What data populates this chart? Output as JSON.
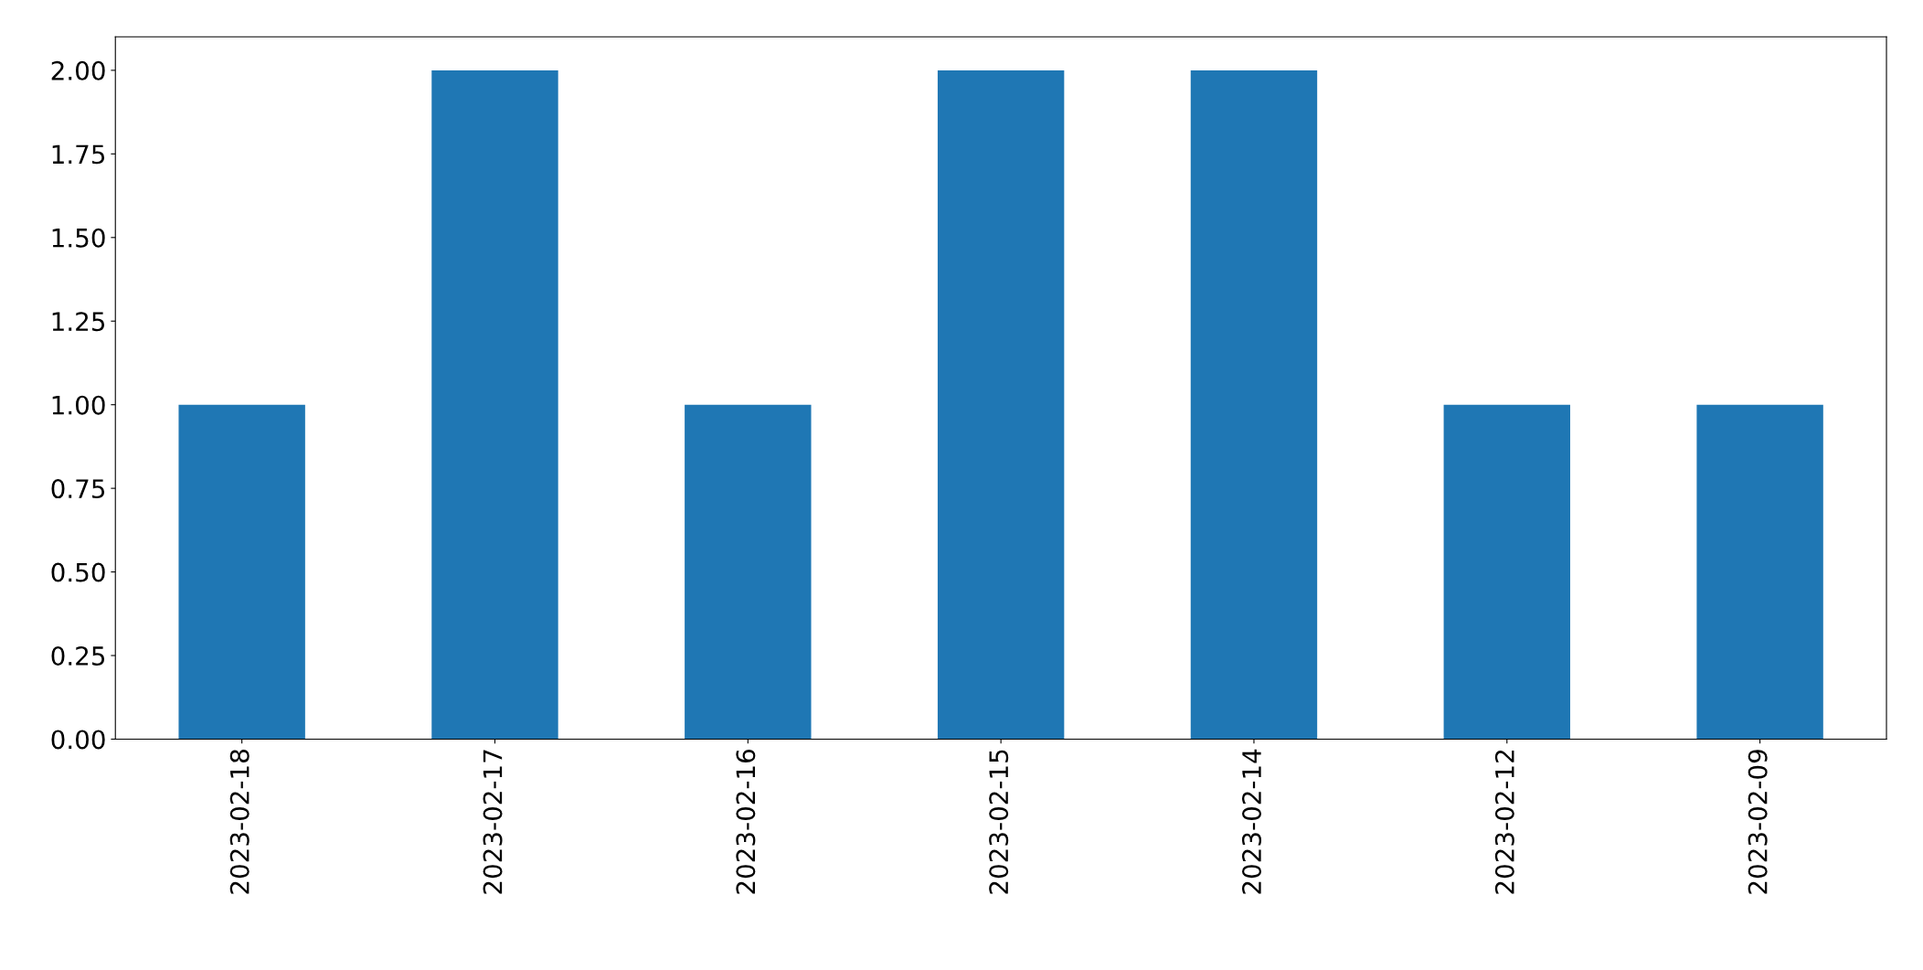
{
  "chart_data": {
    "type": "bar",
    "categories": [
      "2023-02-18",
      "2023-02-17",
      "2023-02-16",
      "2023-02-15",
      "2023-02-14",
      "2023-02-12",
      "2023-02-09"
    ],
    "values": [
      1,
      2,
      1,
      2,
      2,
      1,
      1
    ],
    "color": "#1f77b4",
    "ylim": [
      0,
      2.1
    ],
    "yticks": [
      {
        "value": 0,
        "label": "0.00"
      },
      {
        "value": 0.25,
        "label": "0.25"
      },
      {
        "value": 0.5,
        "label": "0.50"
      },
      {
        "value": 0.75,
        "label": "0.75"
      },
      {
        "value": 1,
        "label": "1.00"
      },
      {
        "value": 1.25,
        "label": "1.25"
      },
      {
        "value": 1.5,
        "label": "1.50"
      },
      {
        "value": 1.75,
        "label": "1.75"
      },
      {
        "value": 2,
        "label": "2.00"
      }
    ],
    "grid": false,
    "legend": false
  }
}
